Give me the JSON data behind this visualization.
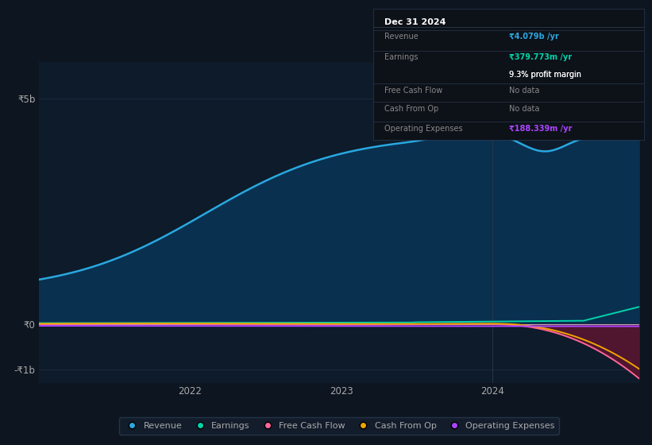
{
  "bg_color": "#0d1520",
  "plot_bg_color": "#0d1b2a",
  "grid_color": "#1e2e42",
  "text_color": "#aaaaaa",
  "ylim": [
    -1300000000.0,
    5800000000.0
  ],
  "yticks": [
    -1000000000.0,
    0,
    5000000000.0
  ],
  "ytick_labels": [
    "-₹1b",
    "₹0",
    "₹5b"
  ],
  "xtick_labels": [
    "2022",
    "2023",
    "2024"
  ],
  "revenue_color": "#29a8e0",
  "earnings_color": "#00d4aa",
  "free_cash_color": "#ff6699",
  "cash_from_op_color": "#f0a500",
  "op_expenses_color": "#aa44ff",
  "revenue_fill_color": "#0a3050",
  "neg_fill_color": "#5c1530",
  "legend_items": [
    "Revenue",
    "Earnings",
    "Free Cash Flow",
    "Cash From Op",
    "Operating Expenses"
  ],
  "legend_colors": [
    "#29a8e0",
    "#00d4aa",
    "#ff6699",
    "#f0a500",
    "#aa44ff"
  ],
  "info_box_bg": "#0d1118",
  "info_box_title": "Dec 31 2024",
  "info_revenue": "₹4.079b /yr",
  "info_earnings": "₹379.773m /yr",
  "info_profit_margin": "9.3% profit margin",
  "info_free_cash": "No data",
  "info_cash_from_op": "No data",
  "info_op_expenses": "₹188.339m /yr",
  "divider_color": "#2a3a50"
}
